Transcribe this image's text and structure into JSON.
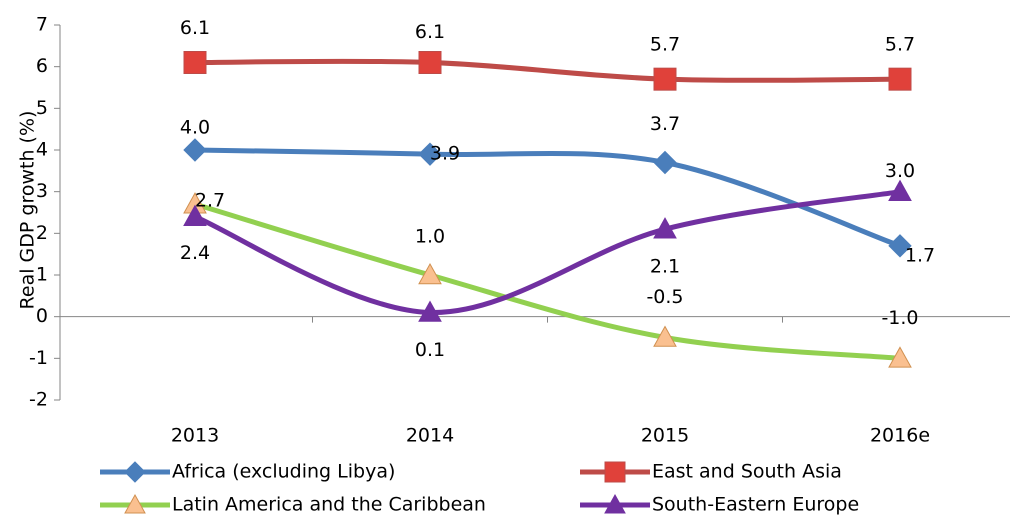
{
  "chart_data": {
    "type": "line",
    "y_label": "Real  GDP  growth (%)",
    "categories": [
      "2013",
      "2014",
      "2015",
      "2016e"
    ],
    "series": [
      {
        "name": "Africa (excluding Libya)",
        "color": "#4a7ebb",
        "marker": "diamond",
        "values": [
          4.0,
          3.9,
          3.7,
          1.7
        ],
        "value_labels": [
          "4.0",
          "3.9",
          "3.7",
          "1.7"
        ]
      },
      {
        "name": "East and South Asia",
        "color": "#be4b48",
        "marker": "square",
        "marker_color": "#e0413a",
        "values": [
          6.1,
          6.1,
          5.7,
          5.7
        ],
        "value_labels": [
          "6.1",
          "6.1",
          "5.7",
          "5.7"
        ]
      },
      {
        "name": "Latin America and the Caribbean",
        "color": "#92d050",
        "marker": "triangle",
        "marker_color": "#fac090",
        "values": [
          2.7,
          1.0,
          -0.5,
          -1.0
        ],
        "value_labels": [
          "2.7",
          "1.0",
          "-0.5",
          "-1.0"
        ]
      },
      {
        "name": "South-Eastern Europe",
        "color": "#7030a0",
        "marker": "triangle",
        "values": [
          2.4,
          0.1,
          2.1,
          3.0
        ],
        "value_labels": [
          "2.4",
          "0.1",
          "2.1",
          "3.0"
        ]
      }
    ],
    "ylim": [
      -2,
      7
    ],
    "yticks": [
      -2,
      -1,
      0,
      1,
      2,
      3,
      4,
      5,
      6,
      7
    ],
    "grid": false,
    "smooth": true
  }
}
